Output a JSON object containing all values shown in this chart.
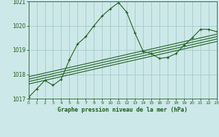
{
  "title": "Graphe pression niveau de la mer (hPa)",
  "bg_color": "#cce8e8",
  "grid_color": "#aacccc",
  "line_color": "#1a5c1a",
  "x_min": 0,
  "x_max": 23,
  "y_min": 1017,
  "y_max": 1021,
  "y_ticks": [
    1017,
    1018,
    1019,
    1020,
    1021
  ],
  "x_ticks": [
    0,
    1,
    2,
    3,
    4,
    5,
    6,
    7,
    8,
    9,
    10,
    11,
    12,
    13,
    14,
    15,
    16,
    17,
    18,
    19,
    20,
    21,
    22,
    23
  ],
  "main_series": [
    [
      0,
      1017.05
    ],
    [
      1,
      1017.4
    ],
    [
      2,
      1017.75
    ],
    [
      3,
      1017.55
    ],
    [
      4,
      1017.8
    ],
    [
      5,
      1018.6
    ],
    [
      6,
      1019.25
    ],
    [
      7,
      1019.55
    ],
    [
      8,
      1020.0
    ],
    [
      9,
      1020.4
    ],
    [
      10,
      1020.7
    ],
    [
      11,
      1020.95
    ],
    [
      12,
      1020.55
    ],
    [
      13,
      1019.7
    ],
    [
      14,
      1018.95
    ],
    [
      15,
      1018.85
    ],
    [
      16,
      1018.65
    ],
    [
      17,
      1018.7
    ],
    [
      18,
      1018.85
    ],
    [
      19,
      1019.2
    ],
    [
      20,
      1019.5
    ],
    [
      21,
      1019.85
    ],
    [
      22,
      1019.85
    ],
    [
      23,
      1019.75
    ]
  ],
  "trend_lines": [
    [
      [
        0,
        1017.6
      ],
      [
        23,
        1019.35
      ]
    ],
    [
      [
        0,
        1017.7
      ],
      [
        23,
        1019.45
      ]
    ],
    [
      [
        0,
        1017.8
      ],
      [
        23,
        1019.55
      ]
    ],
    [
      [
        0,
        1017.9
      ],
      [
        23,
        1019.65
      ]
    ]
  ]
}
